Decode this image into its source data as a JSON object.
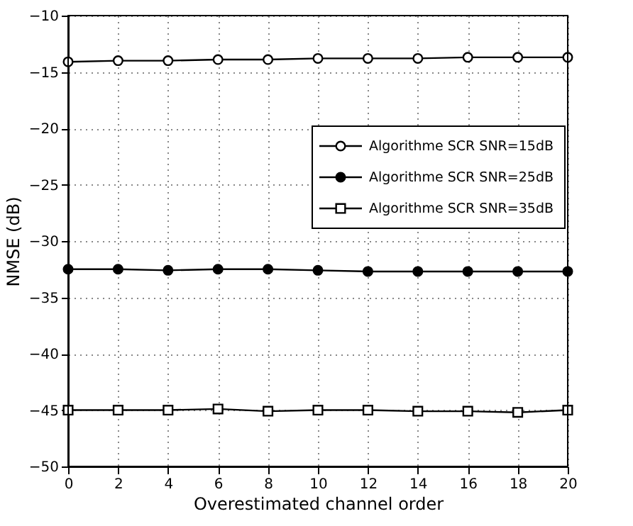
{
  "chart_data": {
    "type": "line",
    "xlabel": "Overestimated channel order",
    "ylabel": "NMSE (dB)",
    "x": [
      0,
      2,
      4,
      6,
      8,
      10,
      12,
      14,
      16,
      18,
      20
    ],
    "series": [
      {
        "name": "Algorithme SCR SNR=15dB",
        "color": "#000000",
        "marker": "circle",
        "values": [
          -14.1,
          -14.0,
          -14.0,
          -13.9,
          -13.9,
          -13.8,
          -13.8,
          -13.8,
          -13.7,
          -13.7,
          -13.7
        ]
      },
      {
        "name": "Algorithme SCR SNR=25dB",
        "color": "#000000",
        "marker": "circle",
        "values": [
          -32.5,
          -32.5,
          -32.6,
          -32.5,
          -32.5,
          -32.6,
          -32.7,
          -32.7,
          -32.7,
          -32.7,
          -32.7
        ]
      },
      {
        "name": "Algorithme SCR SNR=35dB",
        "color": "#000000",
        "marker": "square",
        "values": [
          -45.0,
          -45.0,
          -45.0,
          -44.9,
          -45.1,
          -45.0,
          -45.0,
          -45.1,
          -45.1,
          -45.2,
          -45.0
        ]
      }
    ],
    "xlim": [
      0,
      20
    ],
    "xticks": [
      0,
      2,
      4,
      6,
      8,
      10,
      12,
      14,
      16,
      18,
      20
    ],
    "ylim": [
      -50,
      -10
    ],
    "yticks": [
      -50,
      -45,
      -40,
      -35,
      -30,
      -25,
      -20,
      -15,
      -10
    ],
    "grid": true,
    "legend": "top right",
    "line_style": "solid"
  }
}
